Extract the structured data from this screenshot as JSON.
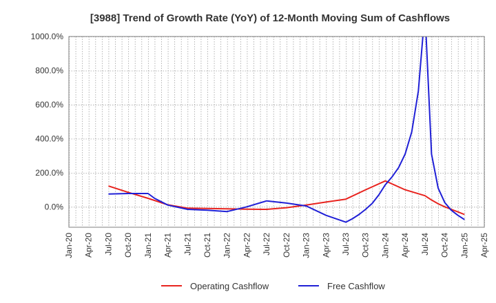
{
  "chart_data": {
    "type": "line",
    "title": "[3988]  Trend of Growth Rate (YoY) of 12-Month Moving Sum of Cashflows",
    "xlabel": "",
    "ylabel": "",
    "ylim": [
      -120,
      1000
    ],
    "y_ticks": [
      0,
      200,
      400,
      600,
      800,
      1000
    ],
    "y_tick_labels": [
      "0.0%",
      "200.0%",
      "400.0%",
      "600.0%",
      "800.0%",
      "1000.0%"
    ],
    "x_ticks": [
      "Jan-20",
      "Apr-20",
      "Jul-20",
      "Oct-20",
      "Jan-21",
      "Apr-21",
      "Jul-21",
      "Oct-21",
      "Jan-22",
      "Apr-22",
      "Jul-22",
      "Oct-22",
      "Jan-23",
      "Apr-23",
      "Jul-23",
      "Oct-23",
      "Jan-24",
      "Apr-24",
      "Jul-24",
      "Oct-24",
      "Jan-25",
      "Apr-25"
    ],
    "grid": true,
    "legend_position": "bottom",
    "series": [
      {
        "name": "Operating Cashflow",
        "color": "#e8231e",
        "points": [
          [
            "Jul-20",
            122
          ],
          [
            "Oct-20",
            85
          ],
          [
            "Jan-21",
            50
          ],
          [
            "Apr-21",
            12
          ],
          [
            "Jul-21",
            -8
          ],
          [
            "Oct-21",
            -10
          ],
          [
            "Jan-22",
            -12
          ],
          [
            "Apr-22",
            -14
          ],
          [
            "Jul-22",
            -15
          ],
          [
            "Oct-22",
            -5
          ],
          [
            "Jan-23",
            10
          ],
          [
            "Apr-23",
            28
          ],
          [
            "Jul-23",
            45
          ],
          [
            "Oct-23",
            100
          ],
          [
            "Jan-24",
            152
          ],
          [
            "Apr-24",
            100
          ],
          [
            "Jul-24",
            65
          ],
          [
            "Aug-24",
            40
          ],
          [
            "Sep-24",
            18
          ],
          [
            "Oct-24",
            0
          ],
          [
            "Nov-24",
            -15
          ],
          [
            "Dec-24",
            -30
          ],
          [
            "Jan-25",
            -45
          ]
        ]
      },
      {
        "name": "Free Cashflow",
        "color": "#1f1fd6",
        "points": [
          [
            "Jul-20",
            75
          ],
          [
            "Oct-20",
            78
          ],
          [
            "Jan-21",
            78
          ],
          [
            "Feb-21",
            50
          ],
          [
            "Apr-21",
            10
          ],
          [
            "Jul-21",
            -15
          ],
          [
            "Oct-21",
            -20
          ],
          [
            "Jan-22",
            -28
          ],
          [
            "Apr-22",
            0
          ],
          [
            "Jul-22",
            35
          ],
          [
            "Oct-22",
            22
          ],
          [
            "Jan-23",
            5
          ],
          [
            "Apr-23",
            -50
          ],
          [
            "Jul-23",
            -90
          ],
          [
            "Aug-23",
            -70
          ],
          [
            "Sep-23",
            -45
          ],
          [
            "Oct-23",
            -15
          ],
          [
            "Nov-23",
            20
          ],
          [
            "Dec-23",
            70
          ],
          [
            "Jan-24",
            130
          ],
          [
            "Feb-24",
            175
          ],
          [
            "Mar-24",
            230
          ],
          [
            "Apr-24",
            310
          ],
          [
            "May-24",
            440
          ],
          [
            "Jun-24",
            680
          ],
          [
            "Jul-24",
            1150
          ],
          [
            "Aug-24",
            310
          ],
          [
            "Sep-24",
            110
          ],
          [
            "Oct-24",
            25
          ],
          [
            "Nov-24",
            -20
          ],
          [
            "Dec-24",
            -50
          ],
          [
            "Jan-25",
            -75
          ]
        ]
      }
    ]
  }
}
